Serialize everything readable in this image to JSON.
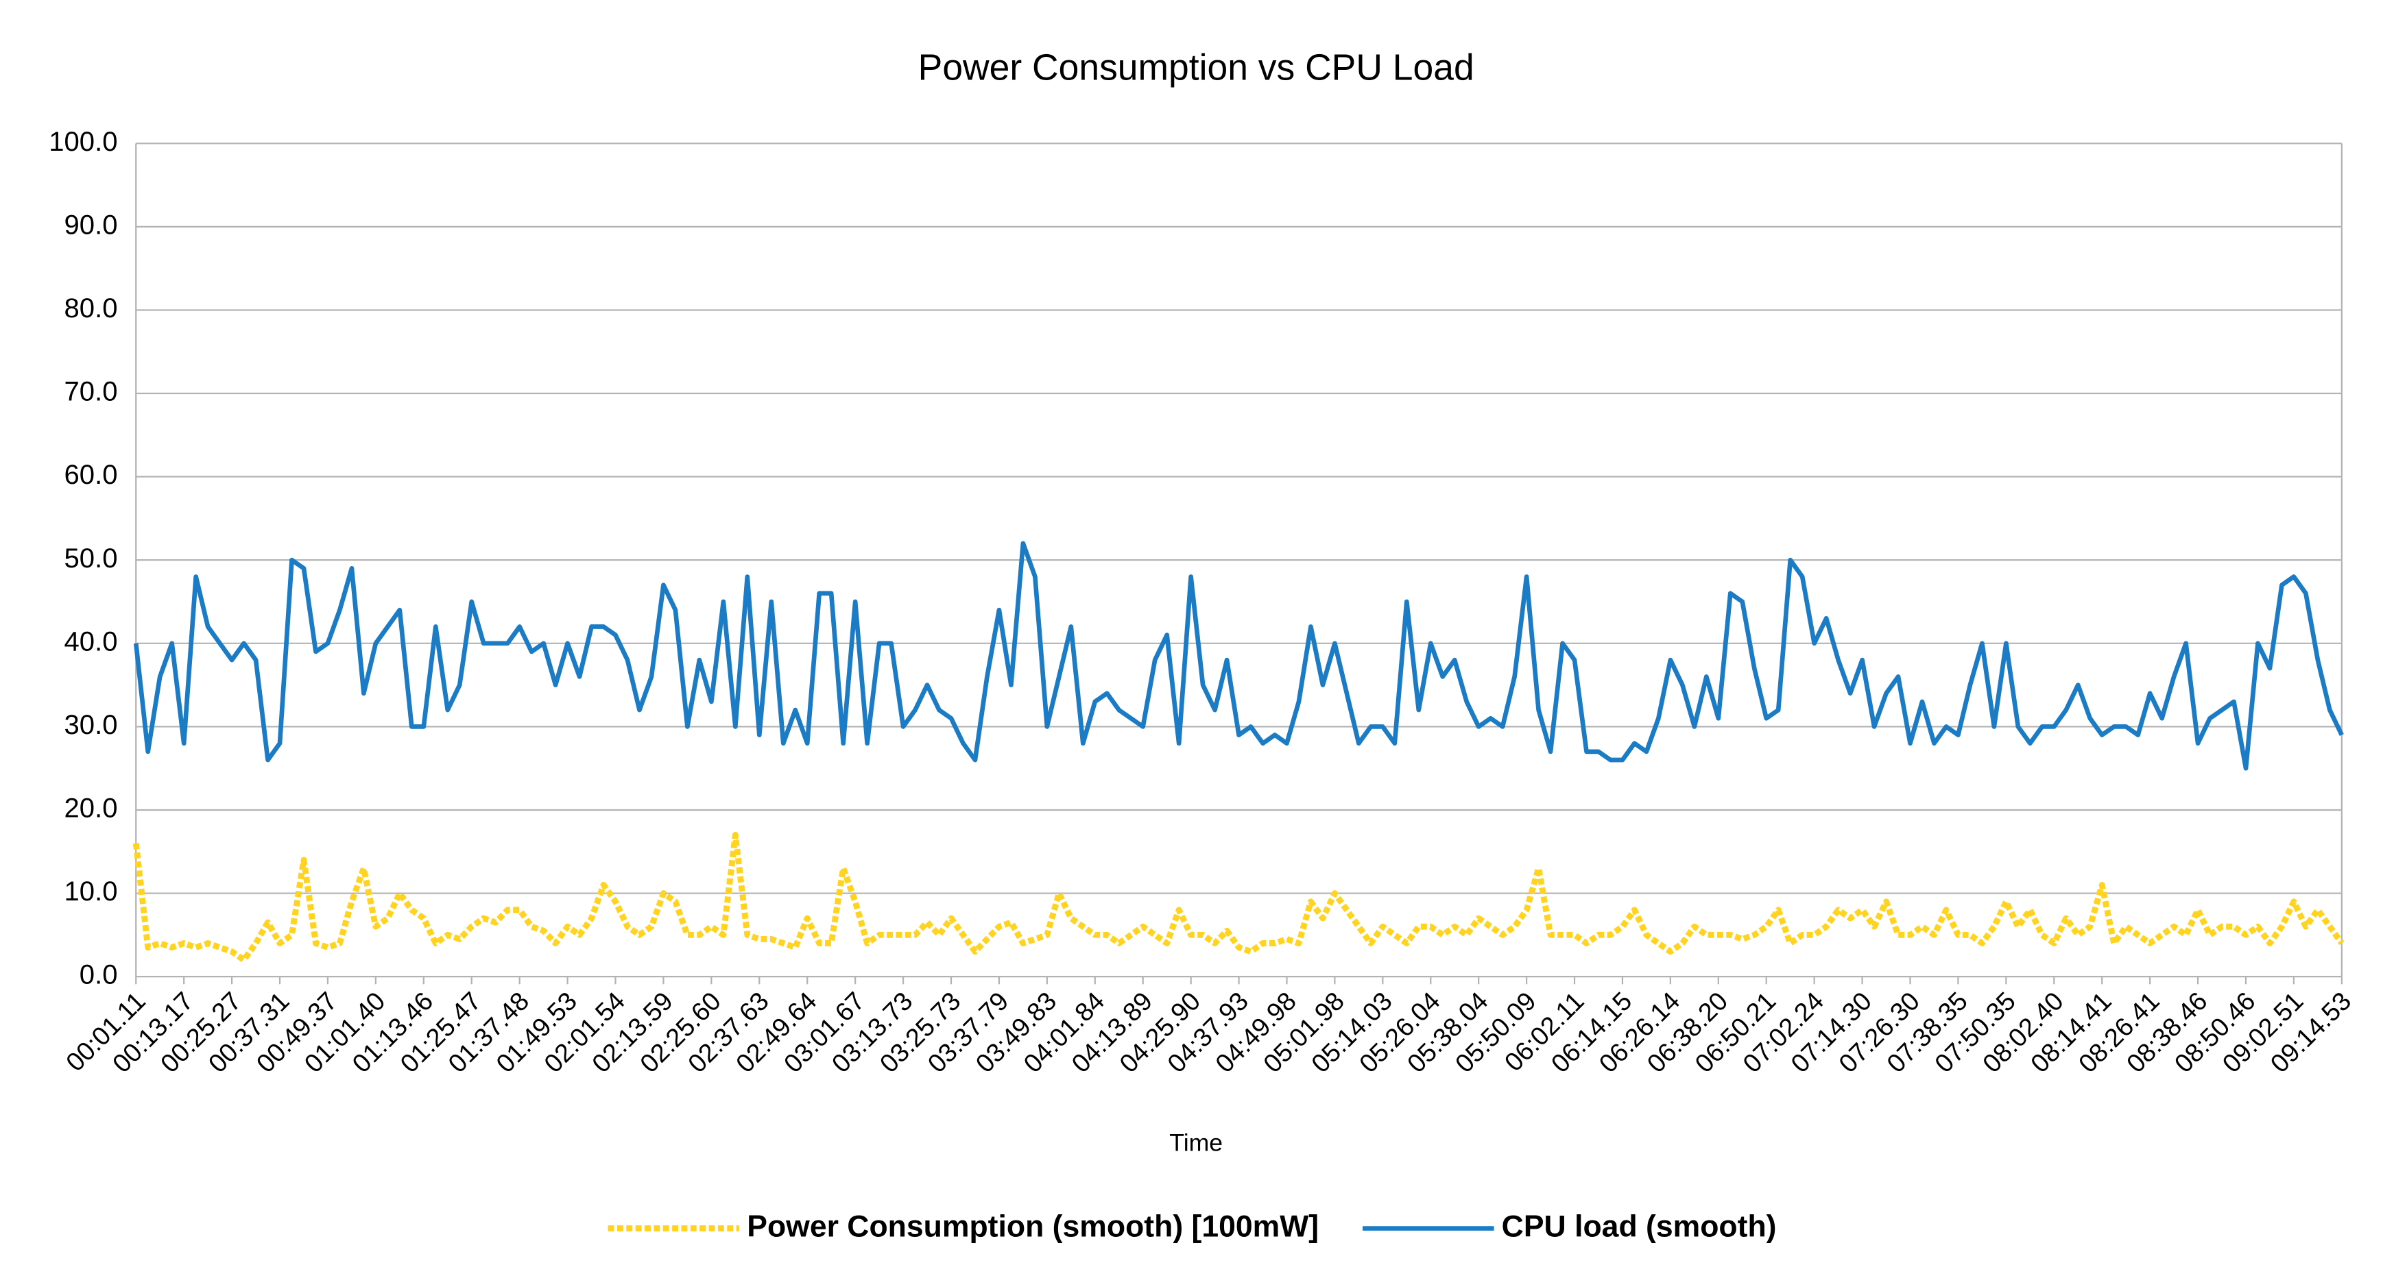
{
  "chart_data": {
    "type": "line",
    "title": "Power Consumption vs CPU Load",
    "x_label": "Time",
    "categories": [
      "00:01.11",
      null,
      null,
      null,
      "00:13.17",
      null,
      null,
      null,
      "00:25.27",
      null,
      null,
      null,
      "00:37.31",
      null,
      null,
      null,
      "00:49.37",
      null,
      null,
      null,
      "01:01.40",
      null,
      null,
      null,
      "01:13.46",
      null,
      null,
      null,
      "01:25.47",
      null,
      null,
      null,
      "01:37.48",
      null,
      null,
      null,
      "01:49.53",
      null,
      null,
      null,
      "02:01.54",
      null,
      null,
      null,
      "02:13.59",
      null,
      null,
      null,
      "02:25.60",
      null,
      null,
      null,
      "02:37.63",
      null,
      null,
      null,
      "02:49.64",
      null,
      null,
      null,
      "03:01.67",
      null,
      null,
      null,
      "03:13.73",
      null,
      null,
      null,
      "03:25.73",
      null,
      null,
      null,
      "03:37.79",
      null,
      null,
      null,
      "03:49.83",
      null,
      null,
      null,
      "04:01.84",
      null,
      null,
      null,
      "04:13.89",
      null,
      null,
      null,
      "04:25.90",
      null,
      null,
      null,
      "04:37.93",
      null,
      null,
      null,
      "04:49.98",
      null,
      null,
      null,
      "05:01.98",
      null,
      null,
      null,
      "05:14.03",
      null,
      null,
      null,
      "05:26.04",
      null,
      null,
      null,
      "05:38.04",
      null,
      null,
      null,
      "05:50.09",
      null,
      null,
      null,
      "06:02.11",
      null,
      null,
      null,
      "06:14.15",
      null,
      null,
      null,
      "06:26.14",
      null,
      null,
      null,
      "06:38.20",
      null,
      null,
      null,
      "06:50.21",
      null,
      null,
      null,
      "07:02.24",
      null,
      null,
      null,
      "07:14.30",
      null,
      null,
      null,
      "07:26.30",
      null,
      null,
      null,
      "07:38.35",
      null,
      null,
      null,
      "07:50.35",
      null,
      null,
      null,
      "08:02.40",
      null,
      null,
      null,
      "08:14.41",
      null,
      null,
      null,
      "08:26.41",
      null,
      null,
      null,
      "08:38.46",
      null,
      null,
      null,
      "08:50.46",
      null,
      null,
      null,
      "09:02.51",
      null,
      null,
      null,
      "09:14.53"
    ],
    "series": [
      {
        "name": "Power Consumption (smooth) [100mW]",
        "color": "#ffd320",
        "dashed": true,
        "values": [
          16,
          3.5,
          4,
          3.5,
          4,
          3.5,
          4,
          3.5,
          3,
          2,
          4,
          6.5,
          4,
          5,
          14,
          4,
          3.5,
          4,
          9,
          13,
          6,
          7,
          10,
          8,
          7,
          4,
          5,
          4.5,
          6,
          7,
          6.5,
          8,
          8,
          6,
          5.5,
          4,
          6,
          5,
          7,
          11,
          9,
          6,
          5,
          6,
          10,
          9,
          5,
          5,
          6,
          5,
          17,
          5,
          4.5,
          4.5,
          4,
          3.5,
          7,
          4,
          4,
          13,
          9,
          4,
          5,
          5,
          5,
          5,
          6.5,
          5,
          7,
          5,
          3,
          4.5,
          6,
          6.5,
          4,
          4.5,
          5,
          10,
          7,
          6,
          5,
          5,
          4,
          5,
          6,
          5,
          4,
          8,
          5,
          5,
          4,
          5.5,
          3.5,
          3,
          4,
          4,
          4.5,
          4,
          9,
          7,
          10,
          8,
          6,
          4,
          6,
          5,
          4,
          6,
          6,
          5,
          6,
          5,
          7,
          6,
          5,
          6,
          8,
          13,
          5,
          5,
          5,
          4,
          5,
          5,
          6,
          8,
          5,
          4,
          3,
          4,
          6,
          5,
          5,
          5,
          4.5,
          5,
          6,
          8,
          4,
          5,
          5,
          6,
          8,
          7,
          8,
          6,
          9,
          5,
          5,
          6,
          5,
          8,
          5,
          5,
          4,
          6,
          9,
          6,
          8,
          5,
          4,
          7,
          5,
          6,
          11,
          4,
          6,
          5,
          4,
          5,
          6,
          5,
          8,
          5,
          6,
          6,
          5,
          6,
          4,
          6,
          9,
          6,
          8,
          6,
          4
        ]
      },
      {
        "name": "CPU load (smooth)",
        "color": "#1b7bc4",
        "dashed": false,
        "values": [
          40,
          27,
          36,
          40,
          28,
          48,
          42,
          40,
          38,
          40,
          38,
          26,
          28,
          50,
          49,
          39,
          40,
          44,
          49,
          34,
          40,
          42,
          44,
          30,
          30,
          42,
          32,
          35,
          45,
          40,
          40,
          40,
          42,
          39,
          40,
          35,
          40,
          36,
          42,
          42,
          41,
          38,
          32,
          36,
          47,
          44,
          30,
          38,
          33,
          45,
          30,
          48,
          29,
          45,
          28,
          32,
          28,
          46,
          46,
          28,
          45,
          28,
          40,
          40,
          30,
          32,
          35,
          32,
          31,
          28,
          26,
          36,
          44,
          35,
          52,
          48,
          30,
          36,
          42,
          28,
          33,
          34,
          32,
          31,
          30,
          38,
          41,
          28,
          48,
          35,
          32,
          38,
          29,
          30,
          28,
          29,
          28,
          33,
          42,
          35,
          40,
          34,
          28,
          30,
          30,
          28,
          45,
          32,
          40,
          36,
          38,
          33,
          30,
          31,
          30,
          36,
          48,
          32,
          27,
          40,
          38,
          27,
          27,
          26,
          26,
          28,
          27,
          31,
          38,
          35,
          30,
          36,
          31,
          46,
          45,
          37,
          31,
          32,
          50,
          48,
          40,
          43,
          38,
          34,
          38,
          30,
          34,
          36,
          28,
          33,
          28,
          30,
          29,
          35,
          40,
          30,
          40,
          30,
          28,
          30,
          30,
          32,
          35,
          31,
          29,
          30,
          30,
          29,
          34,
          31,
          36,
          40,
          28,
          31,
          32,
          33,
          25,
          40,
          37,
          47,
          48,
          46,
          38,
          32,
          29
        ]
      }
    ],
    "ylim": [
      0,
      100
    ],
    "yticks": [
      {
        "value": 0,
        "label": "0.0"
      },
      {
        "value": 10,
        "label": "10.0"
      },
      {
        "value": 20,
        "label": "20.0"
      },
      {
        "value": 30,
        "label": "30.0"
      },
      {
        "value": 40,
        "label": "40.0"
      },
      {
        "value": 50,
        "label": "50.0"
      },
      {
        "value": 60,
        "label": "60.0"
      },
      {
        "value": 70,
        "label": "70.0"
      },
      {
        "value": 80,
        "label": "80.0"
      },
      {
        "value": 90,
        "label": "90.0"
      },
      {
        "value": 100,
        "label": "100.0"
      }
    ],
    "grid": true,
    "legend": "bottom"
  }
}
